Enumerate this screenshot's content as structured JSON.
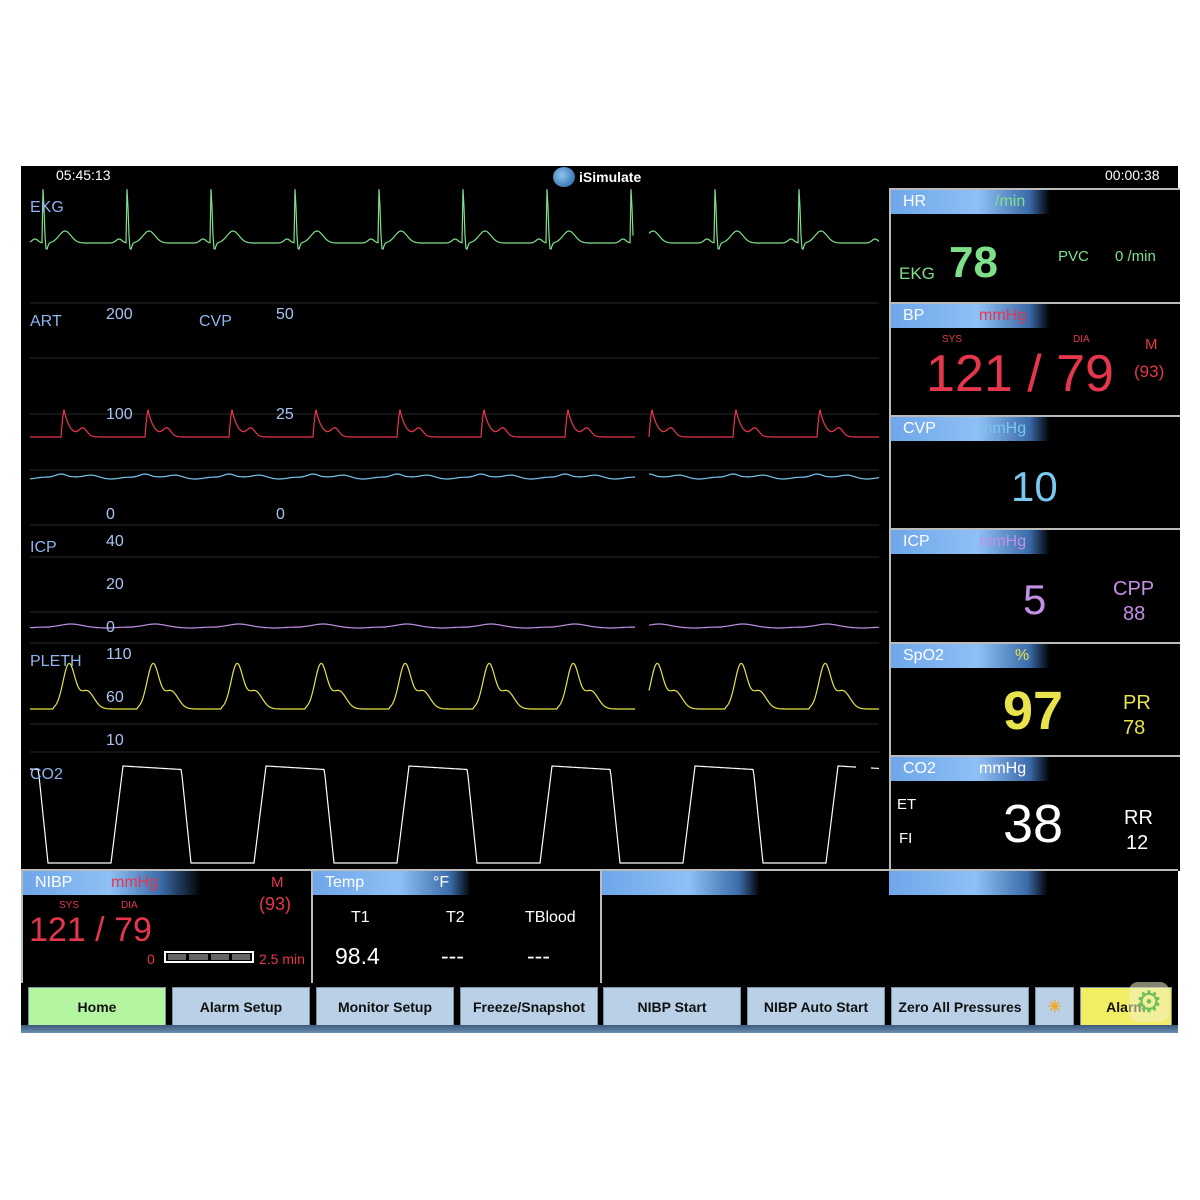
{
  "header": {
    "clock": "05:45:13",
    "app_title": "iSimulate",
    "elapsed": "00:00:38"
  },
  "colors": {
    "ekg": "#7fe08a",
    "art": "#e6364d",
    "cvp": "#78c8ef",
    "icp": "#c48fe6",
    "pleth": "#e8e34a",
    "co2": "#ffffff"
  },
  "waves": {
    "ekg": {
      "label": "EKG"
    },
    "art": {
      "label": "ART",
      "scale": [
        "200",
        "100",
        "0"
      ]
    },
    "cvp": {
      "label": "CVP",
      "scale": [
        "50",
        "25",
        "0"
      ]
    },
    "icp": {
      "label": "ICP",
      "scale": [
        "40",
        "20",
        "0"
      ]
    },
    "pleth": {
      "label": "PLETH",
      "scale": [
        "110",
        "60",
        "10"
      ]
    },
    "co2": {
      "label": "CO2"
    }
  },
  "panels": {
    "hr": {
      "title": "HR",
      "unit": "/min",
      "source": "EKG",
      "value": "78",
      "pvc_label": "PVC",
      "pvc_value": "0 /min"
    },
    "bp": {
      "title": "BP",
      "unit": "mmHg",
      "sys_label": "SYS",
      "dia_label": "DIA",
      "value": "121 / 79",
      "mean_label": "M",
      "mean": "(93)"
    },
    "cvp": {
      "title": "CVP",
      "unit": "mmHg",
      "value": "10"
    },
    "icp": {
      "title": "ICP",
      "unit": "mmHg",
      "value": "5",
      "cpp_label": "CPP",
      "cpp": "88"
    },
    "spo2": {
      "title": "SpO2",
      "unit": "%",
      "value": "97",
      "pr_label": "PR",
      "pr": "78"
    },
    "co2": {
      "title": "CO2",
      "unit": "mmHg",
      "et_label": "ET",
      "fi_label": "FI",
      "value": "38",
      "rr_label": "RR",
      "rr": "12"
    }
  },
  "nibp": {
    "title": "NIBP",
    "unit": "mmHg",
    "sys_label": "SYS",
    "dia_label": "DIA",
    "value": "121 / 79",
    "mean_label": "M",
    "mean": "(93)",
    "interval_min": "0",
    "interval_max": "2.5 min",
    "progress": 1.0
  },
  "temp": {
    "title": "Temp",
    "unit": "°F",
    "cols": [
      {
        "label": "T1",
        "value": "98.4"
      },
      {
        "label": "T2",
        "value": "---"
      },
      {
        "label": "TBlood",
        "value": "---"
      }
    ]
  },
  "buttons": [
    "Home",
    "Alarm Setup",
    "Monitor Setup",
    "Freeze/Snapshot",
    "NIBP Start",
    "NIBP Auto Start",
    "Zero All Pressures"
  ],
  "alarm_button": "Alarm",
  "icons": {
    "brightness": "sun-icon",
    "settings": "gear-icon",
    "logo": "isimulate-logo-icon"
  }
}
